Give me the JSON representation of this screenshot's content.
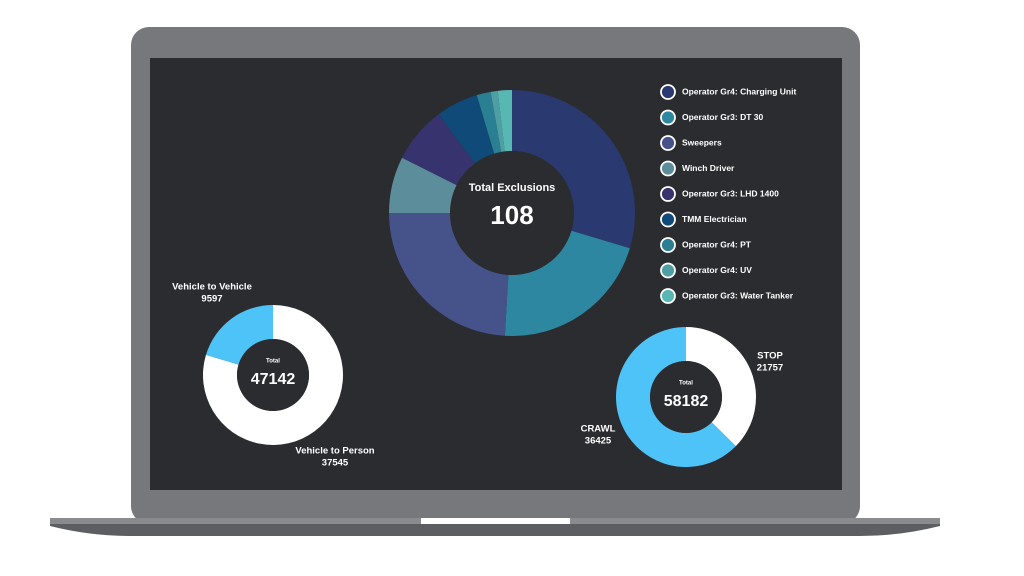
{
  "chart_data": [
    {
      "type": "donut",
      "title": "Total Exclusions",
      "total": 108,
      "categories": [
        "Operator Gr4: Charging Unit",
        "Operator Gr3: DT 30",
        "Sweepers",
        "Winch Driver",
        "Operator Gr3: LHD 1400",
        "TMM Electrician",
        "Operator Gr4: PT",
        "Operator Gr4: UV",
        "Operator Gr3: Water Tanker"
      ],
      "values": [
        32,
        23,
        26,
        8,
        8,
        6,
        2,
        1,
        2
      ],
      "colors": [
        "#2a3a70",
        "#2e87a0",
        "#46538a",
        "#5b8d9a",
        "#37336e",
        "#0f4a78",
        "#2a7f93",
        "#4f9ea3",
        "#57b8b3"
      ],
      "legend": "right"
    },
    {
      "type": "donut",
      "title": "Total",
      "total": 47142,
      "categories": [
        "Vehicle to Person",
        "Vehicle to Vehicle"
      ],
      "values": [
        37545,
        9597
      ],
      "colors": [
        "#ffffff",
        "#4dc3f7"
      ]
    },
    {
      "type": "donut",
      "title": "Total",
      "total": 58182,
      "categories": [
        "STOP",
        "CRAWL"
      ],
      "values": [
        21757,
        36425
      ],
      "colors": [
        "#ffffff",
        "#4dc3f7"
      ]
    }
  ]
}
